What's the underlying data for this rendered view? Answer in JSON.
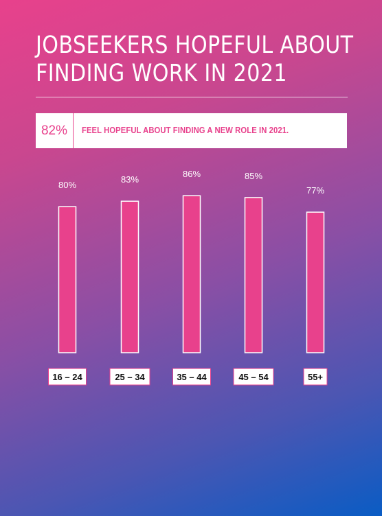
{
  "title_lines": [
    "JOBSEEKERS HOPEFUL ABOUT",
    "FINDING WORK IN 2021"
  ],
  "highlight": {
    "value": "82%",
    "text": "FEEL HOPEFUL ABOUT FINDING A NEW ROLE IN 2021."
  },
  "colors": {
    "accent": "#e8418c",
    "bar_outline": "#ffffff",
    "background_start": "#e8418c",
    "background_end": "#0a5cc4"
  },
  "chart_data": {
    "type": "bar",
    "categories": [
      "16 – 24",
      "25 – 34",
      "35 – 44",
      "45 – 54",
      "55+"
    ],
    "values": [
      80,
      83,
      86,
      85,
      77
    ],
    "data_labels": [
      "80%",
      "83%",
      "86%",
      "85%",
      "77%"
    ],
    "unit": "%",
    "grid": false,
    "legend": "none"
  }
}
